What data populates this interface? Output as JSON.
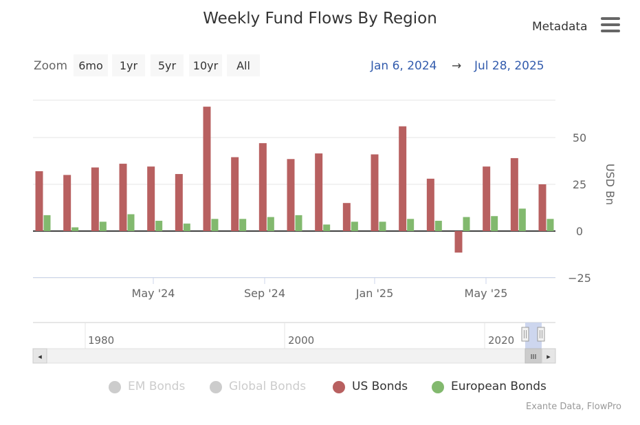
{
  "title": "Weekly Fund Flows By Region",
  "metadata_label": "Metadata",
  "menu_icon": "hamburger-icon",
  "zoom": {
    "label": "Zoom",
    "buttons": [
      "6mo",
      "1yr",
      "5yr",
      "10yr",
      "All"
    ]
  },
  "range": {
    "from": "Jan 6, 2024",
    "arrow": "→",
    "to": "Jul 28, 2025"
  },
  "navigator": {
    "labels": [
      "1980",
      "2000",
      "2020"
    ],
    "left_arrow": "◂",
    "right_arrow": "▸",
    "thumb_grip": "III"
  },
  "legend": [
    {
      "name": "EM Bonds",
      "color": "#cccccc",
      "active": false
    },
    {
      "name": "Global Bonds",
      "color": "#cccccc",
      "active": false
    },
    {
      "name": "US Bonds",
      "color": "#b86060",
      "active": true
    },
    {
      "name": "European Bonds",
      "color": "#82b96e",
      "active": true
    }
  ],
  "source": "Exante Data, FlowPro",
  "colors": {
    "us": "#b86060",
    "eu": "#82b96e",
    "range_text": "#335cad"
  },
  "chart_data": {
    "type": "bar",
    "title": "Weekly Fund Flows By Region",
    "ylabel": "USD Bn",
    "ylim": [
      -25,
      70
    ],
    "yticks": [
      -25,
      0,
      25,
      50
    ],
    "xticks": [
      "May '24",
      "Sep '24",
      "Jan '25",
      "May '25"
    ],
    "series": [
      {
        "name": "US Bonds",
        "values": [
          32,
          30,
          34,
          36,
          34.5,
          30.5,
          66.5,
          39.5,
          47,
          38.5,
          41.5,
          15,
          41,
          56,
          28,
          -11.5,
          34.5,
          39,
          25
        ]
      },
      {
        "name": "European Bonds",
        "values": [
          8.5,
          2,
          5,
          9,
          5.5,
          4,
          6.5,
          6.5,
          7.5,
          8.5,
          3.5,
          5,
          5,
          6.5,
          5.5,
          7.5,
          8,
          12,
          6.5
        ]
      }
    ]
  }
}
